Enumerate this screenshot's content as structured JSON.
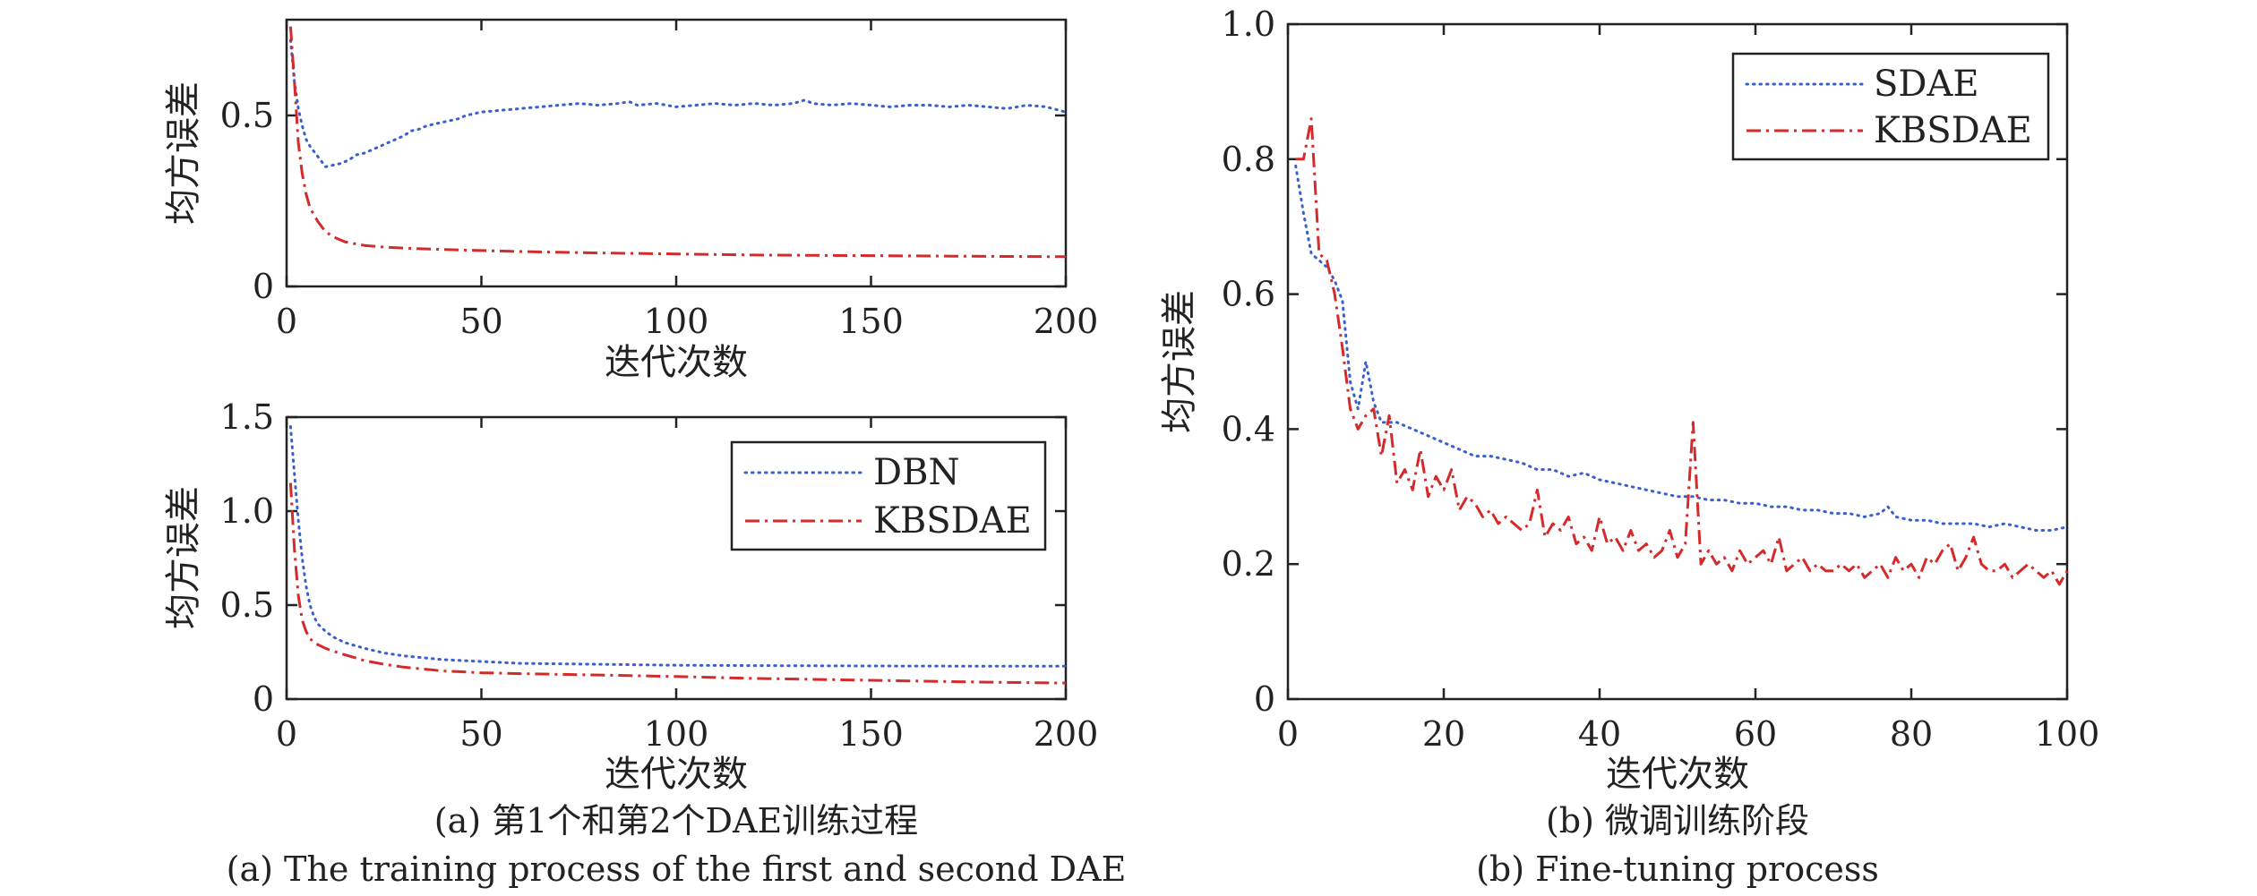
{
  "colors": {
    "series_blue": "#3a5fcd",
    "series_red": "#d42a2a",
    "axis": "#222222"
  },
  "captions": {
    "a_zh": "(a) 第1个和第2个DAE训练过程",
    "a_en": "(a) The training process of the first and second DAE",
    "b_zh": "(b) 微调训练阶段",
    "b_en": "(b) Fine-tuning process"
  },
  "chart_data": [
    {
      "id": "a1",
      "type": "line",
      "xlabel": "迭代次数",
      "ylabel": "均方误差",
      "xlim": [
        0,
        200
      ],
      "ylim": [
        0,
        0.78
      ],
      "xticks": [
        0,
        50,
        100,
        150,
        200
      ],
      "xtick_labels": [
        "0",
        "50",
        "100",
        "150",
        "200"
      ],
      "yticks": [
        0,
        0.5
      ],
      "ytick_labels": [
        "0",
        "0.5"
      ],
      "legend": null,
      "series": [
        {
          "style": "dotted",
          "color": "#3a5fcd",
          "x": [
            1,
            2,
            3,
            4,
            5,
            6,
            8,
            10,
            12,
            14,
            16,
            18,
            20,
            22,
            24,
            26,
            28,
            30,
            32,
            34,
            36,
            38,
            40,
            42,
            44,
            46,
            48,
            50,
            55,
            60,
            65,
            70,
            75,
            80,
            85,
            88,
            90,
            95,
            100,
            105,
            110,
            115,
            120,
            125,
            130,
            133,
            135,
            140,
            145,
            150,
            155,
            160,
            165,
            170,
            175,
            180,
            185,
            190,
            195,
            200
          ],
          "y": [
            0.72,
            0.6,
            0.52,
            0.47,
            0.43,
            0.41,
            0.38,
            0.35,
            0.355,
            0.36,
            0.37,
            0.385,
            0.39,
            0.4,
            0.41,
            0.42,
            0.43,
            0.44,
            0.455,
            0.46,
            0.47,
            0.475,
            0.48,
            0.485,
            0.49,
            0.5,
            0.505,
            0.51,
            0.515,
            0.52,
            0.525,
            0.53,
            0.535,
            0.53,
            0.535,
            0.54,
            0.53,
            0.535,
            0.525,
            0.53,
            0.535,
            0.53,
            0.535,
            0.53,
            0.535,
            0.545,
            0.535,
            0.53,
            0.535,
            0.53,
            0.525,
            0.53,
            0.53,
            0.525,
            0.53,
            0.525,
            0.52,
            0.53,
            0.525,
            0.51
          ]
        },
        {
          "style": "dashdot",
          "color": "#d42a2a",
          "x": [
            1,
            2,
            3,
            4,
            5,
            6,
            8,
            10,
            12,
            15,
            20,
            25,
            30,
            40,
            50,
            60,
            80,
            100,
            120,
            150,
            180,
            200
          ],
          "y": [
            0.76,
            0.6,
            0.42,
            0.33,
            0.27,
            0.23,
            0.19,
            0.16,
            0.145,
            0.13,
            0.12,
            0.115,
            0.112,
            0.108,
            0.105,
            0.102,
            0.098,
            0.095,
            0.092,
            0.09,
            0.088,
            0.087
          ]
        }
      ]
    },
    {
      "id": "a2",
      "type": "line",
      "xlabel": "迭代次数",
      "ylabel": "均方误差",
      "xlim": [
        0,
        200
      ],
      "ylim": [
        0,
        1.5
      ],
      "xticks": [
        0,
        50,
        100,
        150,
        200
      ],
      "xtick_labels": [
        "0",
        "50",
        "100",
        "150",
        "200"
      ],
      "yticks": [
        0,
        0.5,
        1.0,
        1.5
      ],
      "ytick_labels": [
        "0",
        "0.5",
        "1.0",
        "1.5"
      ],
      "legend": {
        "location": "top-right",
        "entries": [
          "DBN",
          "KBSDAE"
        ]
      },
      "series": [
        {
          "name": "DBN",
          "style": "dotted",
          "color": "#3a5fcd",
          "x": [
            1,
            2,
            3,
            4,
            5,
            6,
            7,
            8,
            10,
            12,
            15,
            20,
            25,
            30,
            40,
            50,
            60,
            80,
            100,
            120,
            150,
            180,
            200
          ],
          "y": [
            1.45,
            1.2,
            0.95,
            0.75,
            0.6,
            0.5,
            0.44,
            0.4,
            0.36,
            0.33,
            0.3,
            0.27,
            0.245,
            0.23,
            0.21,
            0.2,
            0.19,
            0.185,
            0.18,
            0.178,
            0.176,
            0.175,
            0.175
          ]
        },
        {
          "name": "KBSDAE",
          "style": "dashdot",
          "color": "#d42a2a",
          "x": [
            1,
            2,
            3,
            4,
            5,
            6,
            8,
            10,
            12,
            15,
            20,
            25,
            30,
            40,
            50,
            60,
            80,
            100,
            120,
            150,
            180,
            200
          ],
          "y": [
            1.15,
            0.8,
            0.55,
            0.42,
            0.36,
            0.32,
            0.29,
            0.27,
            0.255,
            0.235,
            0.205,
            0.185,
            0.17,
            0.15,
            0.14,
            0.135,
            0.128,
            0.12,
            0.11,
            0.1,
            0.09,
            0.085
          ]
        }
      ]
    },
    {
      "id": "b",
      "type": "line",
      "xlabel": "迭代次数",
      "ylabel": "均方误差",
      "xlim": [
        0,
        100
      ],
      "ylim": [
        0,
        1.0
      ],
      "xticks": [
        0,
        20,
        40,
        60,
        80,
        100
      ],
      "xtick_labels": [
        "0",
        "20",
        "40",
        "60",
        "80",
        "100"
      ],
      "yticks": [
        0,
        0.2,
        0.4,
        0.6,
        0.8,
        1.0
      ],
      "ytick_labels": [
        "0",
        "0.2",
        "0.4",
        "0.6",
        "0.8",
        "1.0"
      ],
      "legend": {
        "location": "top-right",
        "entries": [
          "SDAE",
          "KBSDAE"
        ]
      },
      "series": [
        {
          "name": "SDAE",
          "style": "dotted",
          "color": "#3a5fcd",
          "x": [
            1,
            2,
            3,
            4,
            5,
            6,
            7,
            8,
            9,
            10,
            11,
            12,
            14,
            16,
            18,
            20,
            22,
            24,
            26,
            28,
            30,
            32,
            34,
            36,
            38,
            40,
            42,
            44,
            46,
            48,
            50,
            52,
            54,
            56,
            58,
            60,
            62,
            64,
            66,
            68,
            70,
            72,
            74,
            76,
            77,
            78,
            80,
            82,
            84,
            86,
            88,
            90,
            92,
            94,
            96,
            98,
            100
          ],
          "y": [
            0.79,
            0.72,
            0.66,
            0.65,
            0.64,
            0.62,
            0.59,
            0.47,
            0.43,
            0.5,
            0.44,
            0.41,
            0.41,
            0.4,
            0.39,
            0.38,
            0.37,
            0.36,
            0.36,
            0.355,
            0.35,
            0.34,
            0.34,
            0.33,
            0.335,
            0.325,
            0.32,
            0.315,
            0.31,
            0.305,
            0.3,
            0.3,
            0.295,
            0.295,
            0.29,
            0.29,
            0.285,
            0.285,
            0.28,
            0.28,
            0.275,
            0.275,
            0.27,
            0.275,
            0.285,
            0.27,
            0.265,
            0.265,
            0.26,
            0.26,
            0.26,
            0.255,
            0.26,
            0.255,
            0.25,
            0.25,
            0.255
          ]
        },
        {
          "name": "KBSDAE",
          "style": "dashdot",
          "color": "#d42a2a",
          "x": [
            1,
            2,
            3,
            4,
            5,
            6,
            7,
            8,
            9,
            10,
            11,
            12,
            13,
            14,
            15,
            16,
            17,
            18,
            19,
            20,
            21,
            22,
            23,
            24,
            25,
            26,
            27,
            28,
            29,
            30,
            31,
            32,
            33,
            34,
            35,
            36,
            37,
            38,
            39,
            40,
            41,
            42,
            43,
            44,
            45,
            46,
            47,
            48,
            49,
            50,
            51,
            52,
            53,
            54,
            55,
            56,
            57,
            58,
            59,
            60,
            61,
            62,
            63,
            64,
            65,
            66,
            67,
            68,
            69,
            70,
            71,
            72,
            73,
            74,
            75,
            76,
            77,
            78,
            79,
            80,
            81,
            82,
            83,
            84,
            85,
            86,
            87,
            88,
            89,
            90,
            91,
            92,
            93,
            94,
            95,
            96,
            97,
            98,
            99,
            100
          ],
          "y": [
            0.8,
            0.8,
            0.86,
            0.66,
            0.65,
            0.6,
            0.52,
            0.43,
            0.4,
            0.42,
            0.43,
            0.36,
            0.42,
            0.32,
            0.34,
            0.31,
            0.37,
            0.3,
            0.33,
            0.31,
            0.34,
            0.28,
            0.3,
            0.29,
            0.27,
            0.28,
            0.26,
            0.27,
            0.26,
            0.25,
            0.26,
            0.31,
            0.24,
            0.26,
            0.25,
            0.27,
            0.23,
            0.24,
            0.22,
            0.27,
            0.23,
            0.24,
            0.22,
            0.25,
            0.22,
            0.23,
            0.21,
            0.22,
            0.25,
            0.21,
            0.23,
            0.41,
            0.2,
            0.22,
            0.2,
            0.21,
            0.19,
            0.22,
            0.2,
            0.21,
            0.22,
            0.2,
            0.24,
            0.19,
            0.2,
            0.21,
            0.19,
            0.2,
            0.19,
            0.19,
            0.2,
            0.19,
            0.2,
            0.18,
            0.19,
            0.2,
            0.18,
            0.21,
            0.19,
            0.2,
            0.18,
            0.21,
            0.2,
            0.22,
            0.23,
            0.19,
            0.21,
            0.24,
            0.2,
            0.19,
            0.19,
            0.2,
            0.18,
            0.19,
            0.2,
            0.19,
            0.18,
            0.19,
            0.17,
            0.19
          ]
        }
      ]
    }
  ]
}
